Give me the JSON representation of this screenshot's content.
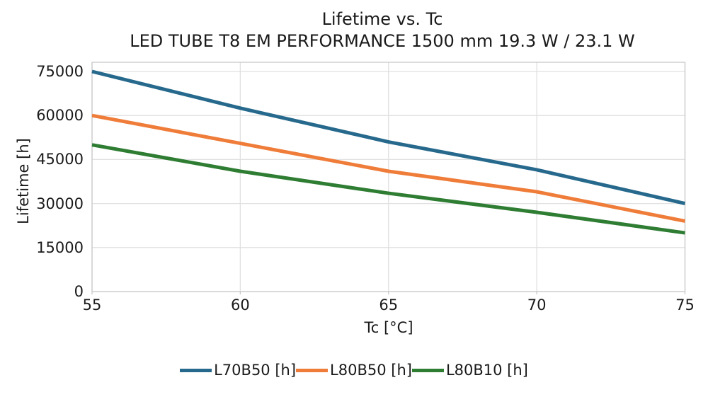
{
  "chart_data": {
    "type": "line",
    "title": "Lifetime vs. Tc",
    "subtitle": "LED TUBE T8 EM PERFORMANCE 1500 mm 19.3 W / 23.1 W",
    "xlabel": "Tc [°C]",
    "ylabel": "Lifetime [h]",
    "x": [
      55,
      60,
      65,
      70,
      75
    ],
    "xticks": [
      55,
      60,
      65,
      70,
      75
    ],
    "yticks": [
      0,
      15000,
      30000,
      45000,
      60000,
      75000
    ],
    "xlim": [
      55,
      75
    ],
    "ylim": [
      0,
      78000
    ],
    "grid": true,
    "legend_position": "bottom",
    "series": [
      {
        "name": "L70B50 [h]",
        "color": "#26698c",
        "values": [
          75000,
          62500,
          51000,
          41500,
          30000
        ]
      },
      {
        "name": "L80B50 [h]",
        "color": "#ef7c39",
        "values": [
          60000,
          50500,
          41000,
          34000,
          24000
        ]
      },
      {
        "name": "L80B10 [h]",
        "color": "#2e7d33",
        "values": [
          50000,
          41000,
          33500,
          27000,
          20000
        ]
      }
    ],
    "grid_color": "#e0e0e0",
    "frame_color": "#c9c9c9",
    "text_color": "#1a1a1a"
  }
}
